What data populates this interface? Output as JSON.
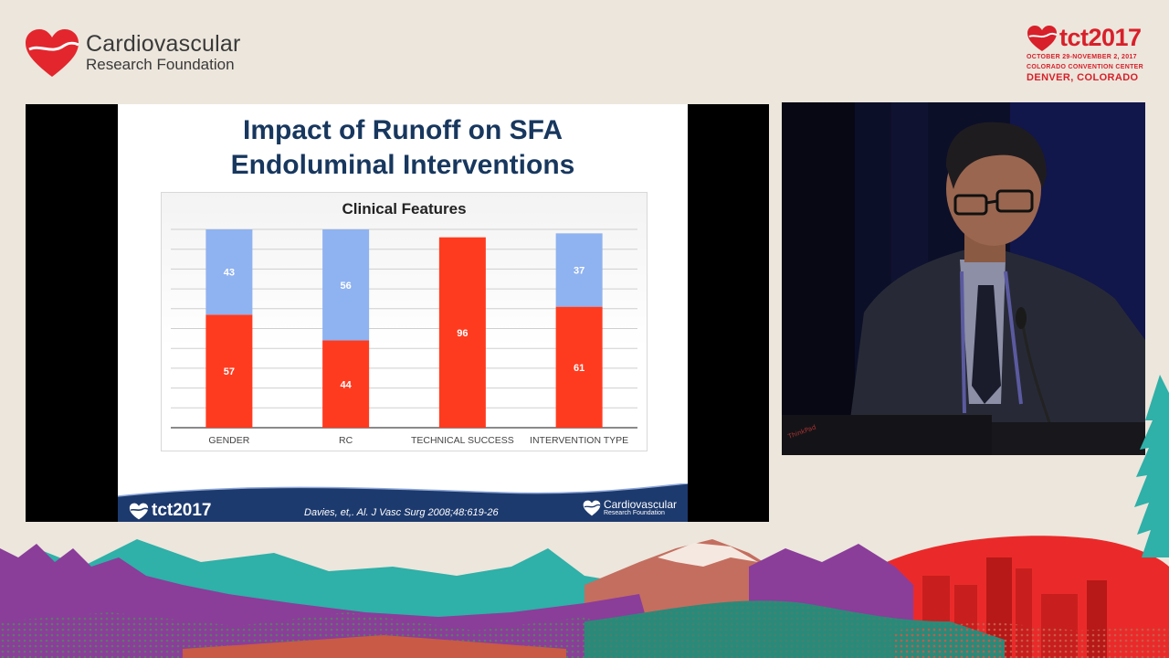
{
  "header": {
    "crf_line1": "Cardiovascular",
    "crf_line2": "Research Foundation",
    "tct_word": "tct2017",
    "tct_dates": "OCTOBER 29-NOVEMBER 2, 2017",
    "tct_venue": "COLORADO CONVENTION CENTER",
    "tct_city": "DENVER, COLORADO"
  },
  "slide": {
    "title_line1": "Impact of Runoff on SFA",
    "title_line2": "Endoluminal Interventions",
    "footer_tct": "tct2017",
    "citation": "Davies, et,. Al. J Vasc Surg 2008;48:619-26",
    "footer_crf_line1": "Cardiovascular",
    "footer_crf_line2": "Research Foundation"
  },
  "colors": {
    "red": "#ff3b1f",
    "blue": "#8fb2f0",
    "title_navy": "#17375e",
    "brand_red": "#d8202a"
  },
  "chart_data": {
    "type": "bar",
    "title": "Clinical Features",
    "categories": [
      "GENDER",
      "RC",
      "TECHNICAL SUCCESS",
      "INTERVENTION TYPE"
    ],
    "series": [
      {
        "values": [
          57,
          44,
          96,
          61
        ],
        "color": "#ff3b1f"
      },
      {
        "values": [
          43,
          56,
          null,
          37
        ],
        "color": "#8fb2f0"
      }
    ],
    "stacked": true,
    "ylim": [
      0,
      100
    ],
    "grid": true,
    "legend": "none"
  }
}
